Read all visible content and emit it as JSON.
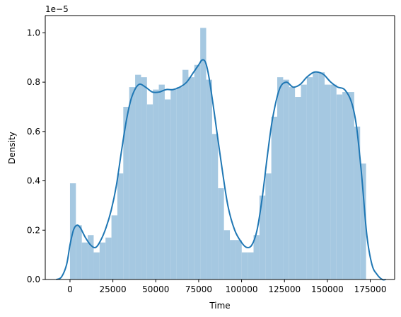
{
  "chart_data": {
    "type": "bar",
    "xlabel": "Time",
    "ylabel": "Density",
    "scale_label": "1e−5",
    "xlim": [
      -14411,
      189200
    ],
    "ylim": [
      0,
      1.07
    ],
    "grid": false,
    "legend": "none",
    "xticks": [
      0,
      25000,
      50000,
      75000,
      100000,
      125000,
      150000,
      175000
    ],
    "xtick_labels": [
      "0",
      "25000",
      "50000",
      "75000",
      "100000",
      "125000",
      "150000",
      "175000"
    ],
    "yticks": [
      0.0,
      0.2,
      0.4,
      0.6,
      0.8,
      1.0
    ],
    "ytick_labels": [
      "0.0",
      "0.2",
      "0.4",
      "0.6",
      "0.8",
      "1.0"
    ],
    "histogram": {
      "bin_start": 0,
      "bin_width": 3451,
      "color": "#a5c8e1",
      "values": [
        0.39,
        0.22,
        0.15,
        0.18,
        0.11,
        0.15,
        0.17,
        0.26,
        0.43,
        0.7,
        0.78,
        0.83,
        0.82,
        0.71,
        0.77,
        0.79,
        0.73,
        0.77,
        0.78,
        0.85,
        0.82,
        0.87,
        1.02,
        0.81,
        0.59,
        0.37,
        0.2,
        0.16,
        0.16,
        0.11,
        0.11,
        0.18,
        0.34,
        0.43,
        0.66,
        0.82,
        0.81,
        0.78,
        0.74,
        0.79,
        0.82,
        0.84,
        0.84,
        0.79,
        0.79,
        0.75,
        0.76,
        0.76,
        0.62,
        0.47
      ]
    },
    "kde": {
      "color": "#1f77b4",
      "x": [
        -8000,
        -5000,
        -2000,
        0,
        2000,
        4000,
        6000,
        9000,
        12000,
        15000,
        18000,
        21000,
        24000,
        27000,
        30000,
        33000,
        36000,
        40000,
        44000,
        48000,
        52000,
        56000,
        60000,
        64000,
        68000,
        72000,
        75000,
        77000,
        79000,
        81000,
        84000,
        88000,
        92000,
        96000,
        100000,
        103000,
        106000,
        109000,
        112000,
        115000,
        118000,
        122000,
        126000,
        130000,
        134000,
        138000,
        142000,
        145000,
        148000,
        152000,
        156000,
        160000,
        164000,
        167000,
        170000,
        173000,
        176000,
        179000,
        182000,
        184000
      ],
      "y": [
        0.0,
        0.01,
        0.06,
        0.14,
        0.2,
        0.22,
        0.21,
        0.17,
        0.14,
        0.13,
        0.16,
        0.21,
        0.28,
        0.38,
        0.52,
        0.65,
        0.74,
        0.79,
        0.78,
        0.76,
        0.76,
        0.77,
        0.77,
        0.78,
        0.8,
        0.84,
        0.87,
        0.89,
        0.88,
        0.82,
        0.68,
        0.48,
        0.3,
        0.2,
        0.15,
        0.13,
        0.14,
        0.2,
        0.33,
        0.5,
        0.65,
        0.77,
        0.8,
        0.78,
        0.79,
        0.82,
        0.84,
        0.84,
        0.83,
        0.8,
        0.78,
        0.77,
        0.72,
        0.62,
        0.42,
        0.18,
        0.06,
        0.02,
        0.0,
        0.0
      ]
    }
  }
}
